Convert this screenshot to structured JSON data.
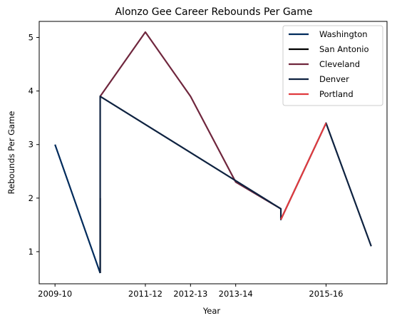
{
  "chart_data": {
    "type": "line",
    "title": "Alonzo Gee Career Rebounds Per Game",
    "xlabel": "Year",
    "ylabel": "Rebounds Per Game",
    "x_tick_labels": [
      "2009-10",
      "2011-12",
      "2012-13",
      "2013-14",
      "2015-16"
    ],
    "y_ticks": [
      1,
      2,
      3,
      4,
      5
    ],
    "ylim": [
      0.4,
      5.3
    ],
    "legend_position": "top-right",
    "grid": false,
    "series": [
      {
        "name": "Washington",
        "color": "#002B5C",
        "points": [
          {
            "x": "2009-10",
            "y": 3.0
          },
          {
            "x": "2010-11",
            "y": 0.6
          }
        ]
      },
      {
        "name": "San Antonio",
        "color": "#000000",
        "points": [
          {
            "x": "2010-11",
            "y": 0.6
          },
          {
            "x": "2010-11",
            "y": 2.0
          }
        ]
      },
      {
        "name": "Cleveland",
        "color": "#6F263D",
        "points": [
          {
            "x": "2010-11",
            "y": 3.9
          },
          {
            "x": "2011-12",
            "y": 5.1
          },
          {
            "x": "2012-13",
            "y": 3.9
          },
          {
            "x": "2013-14",
            "y": 2.3
          },
          {
            "x": "2014-15",
            "y": 1.8
          }
        ]
      },
      {
        "name": "Denver",
        "color": "#0E2240",
        "points": [
          {
            "x": "2010-11",
            "y": 0.6
          },
          {
            "x": "2010-11",
            "y": 3.9
          },
          {
            "x": "2014-15",
            "y": 1.8
          },
          {
            "x": "2014-15",
            "y": 1.6
          },
          {
            "x": "2015-16",
            "y": 3.4
          },
          {
            "x": "2016-17",
            "y": 1.1
          }
        ]
      },
      {
        "name": "Portland",
        "color": "#E03A3E",
        "points": [
          {
            "x": "2014-15",
            "y": 1.6
          },
          {
            "x": "2015-16",
            "y": 3.4
          }
        ]
      }
    ]
  }
}
